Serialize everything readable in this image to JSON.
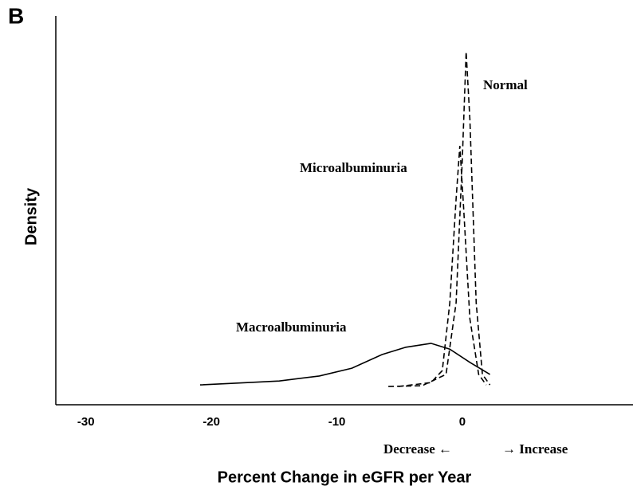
{
  "panel_label": "B",
  "chart_data": {
    "type": "line",
    "ylabel": "Density",
    "xlabel": "Percent Change in eGFR per Year",
    "direction_labels": [
      "Decrease ←",
      "→ Increase"
    ],
    "xlim": [
      -32.4,
      13.6
    ],
    "ylim": [
      0,
      100
    ],
    "xticks": [
      -30,
      -20,
      -10,
      0
    ],
    "series": [
      {
        "name": "Macroalbuminuria",
        "color": "#000000",
        "dashed": false,
        "x": [
          -20.9,
          -18.4,
          -14.6,
          -11.4,
          -8.8,
          -6.4,
          -4.5,
          -2.5,
          -1.0,
          0.6,
          2.2
        ],
        "values": [
          5.1,
          5.5,
          6.1,
          7.4,
          9.4,
          12.9,
          14.8,
          15.8,
          14.3,
          10.9,
          7.8
        ]
      },
      {
        "name": "Microalbuminuria",
        "color": "#000000",
        "dashed": true,
        "x": [
          -5.1,
          -2.5,
          -1.6,
          -1.0,
          -0.5,
          -0.2,
          0.1,
          0.6,
          1.3,
          1.9
        ],
        "values": [
          4.7,
          5.7,
          8.8,
          26.2,
          52.9,
          66.6,
          50.8,
          22.1,
          7.8,
          5.1
        ]
      },
      {
        "name": "Normal",
        "color": "#000000",
        "dashed": true,
        "x": [
          -5.9,
          -3.2,
          -1.3,
          -0.5,
          0,
          0.3,
          0.6,
          1.1,
          1.6,
          2.2
        ],
        "values": [
          4.7,
          4.9,
          7.8,
          26.2,
          63.1,
          90.8,
          73.4,
          26.2,
          7.8,
          5.1
        ]
      }
    ]
  }
}
